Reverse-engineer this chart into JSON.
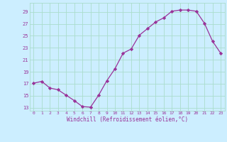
{
  "x": [
    0,
    1,
    2,
    3,
    4,
    5,
    6,
    7,
    8,
    9,
    10,
    11,
    12,
    13,
    14,
    15,
    16,
    17,
    18,
    19,
    20,
    21,
    22,
    23
  ],
  "y": [
    17.1,
    17.4,
    16.3,
    16.0,
    15.1,
    14.2,
    13.2,
    13.1,
    15.1,
    17.5,
    19.5,
    22.1,
    22.8,
    25.1,
    26.2,
    27.3,
    28.0,
    29.1,
    29.3,
    29.3,
    29.1,
    27.1,
    24.1,
    22.1
  ],
  "line_color": "#993399",
  "marker": "D",
  "marker_size": 2.2,
  "bg_color": "#cceeff",
  "grid_color": "#aaddcc",
  "xlabel": "Windchill (Refroidissement éolien,°C)",
  "ylabel_ticks": [
    13,
    15,
    17,
    19,
    21,
    23,
    25,
    27,
    29
  ],
  "xtick_labels": [
    "0",
    "1",
    "2",
    "3",
    "4",
    "5",
    "6",
    "7",
    "8",
    "9",
    "10",
    "11",
    "12",
    "13",
    "14",
    "15",
    "16",
    "17",
    "18",
    "19",
    "20",
    "21",
    "22",
    "23"
  ],
  "ylim": [
    12.5,
    30.5
  ],
  "xlim": [
    -0.5,
    23.5
  ],
  "label_color": "#993399",
  "tick_color": "#993399",
  "font_family": "monospace"
}
